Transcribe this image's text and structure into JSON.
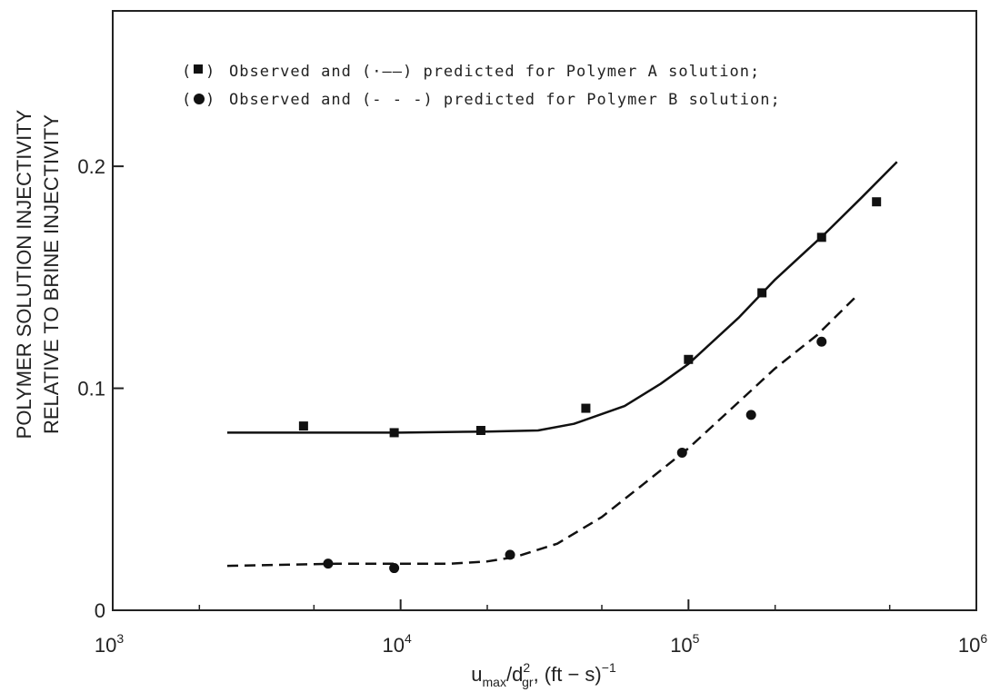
{
  "chart_data": {
    "type": "scatter",
    "xscale": "log",
    "xlim": [
      1000,
      1000000
    ],
    "ylim": [
      0,
      0.27
    ],
    "grid": false,
    "legend_position": "top-left",
    "x_tick_labels": [
      {
        "value": 1000,
        "base": "10",
        "exp": "3"
      },
      {
        "value": 10000,
        "base": "10",
        "exp": "4"
      },
      {
        "value": 100000,
        "base": "10",
        "exp": "5"
      },
      {
        "value": 1000000,
        "base": "10",
        "exp": "6"
      }
    ],
    "y_ticks": [
      {
        "value": 0,
        "label": "0"
      },
      {
        "value": 0.1,
        "label": "0.1"
      },
      {
        "value": 0.2,
        "label": "0.2"
      }
    ],
    "ylabel_lines": [
      "POLYMER SOLUTION INJECTIVITY",
      "RELATIVE TO BRINE INJECTIVITY"
    ],
    "xlabel": {
      "u": "u",
      "max": "max",
      "slash": "/d",
      "gr": "gr",
      "sq": "2",
      "rest": ", (ft − s)",
      "exp": "−1"
    },
    "legend": [
      {
        "symbol": "square",
        "text": "Observed and (·——) predicted for Polymer A solution;"
      },
      {
        "symbol": "circle",
        "text": "Observed and (- - -) predicted for Polymer B solution;"
      }
    ],
    "series": [
      {
        "marker": "square",
        "observed": [
          [
            4600,
            0.083
          ],
          [
            9500,
            0.08
          ],
          [
            19000,
            0.081
          ],
          [
            44000,
            0.091
          ],
          [
            100000,
            0.113
          ],
          [
            180000,
            0.143
          ],
          [
            290000,
            0.168
          ],
          [
            450000,
            0.184
          ]
        ],
        "predicted_style": "solid",
        "predicted": [
          [
            2500,
            0.08
          ],
          [
            5000,
            0.08
          ],
          [
            10000,
            0.08
          ],
          [
            20000,
            0.0805
          ],
          [
            30000,
            0.081
          ],
          [
            40000,
            0.084
          ],
          [
            60000,
            0.092
          ],
          [
            80000,
            0.102
          ],
          [
            100000,
            0.111
          ],
          [
            150000,
            0.132
          ],
          [
            200000,
            0.149
          ],
          [
            300000,
            0.17
          ],
          [
            400000,
            0.186
          ],
          [
            530000,
            0.202
          ]
        ]
      },
      {
        "marker": "circle",
        "observed": [
          [
            5600,
            0.021
          ],
          [
            9500,
            0.019
          ],
          [
            24000,
            0.025
          ],
          [
            95000,
            0.071
          ],
          [
            165000,
            0.088
          ],
          [
            290000,
            0.121
          ]
        ],
        "predicted_style": "dashed",
        "predicted": [
          [
            2500,
            0.02
          ],
          [
            6000,
            0.021
          ],
          [
            10000,
            0.021
          ],
          [
            15000,
            0.021
          ],
          [
            20000,
            0.022
          ],
          [
            25000,
            0.024
          ],
          [
            35000,
            0.03
          ],
          [
            50000,
            0.042
          ],
          [
            70000,
            0.057
          ],
          [
            100000,
            0.073
          ],
          [
            150000,
            0.094
          ],
          [
            200000,
            0.109
          ],
          [
            280000,
            0.124
          ],
          [
            380000,
            0.141
          ]
        ]
      }
    ]
  }
}
